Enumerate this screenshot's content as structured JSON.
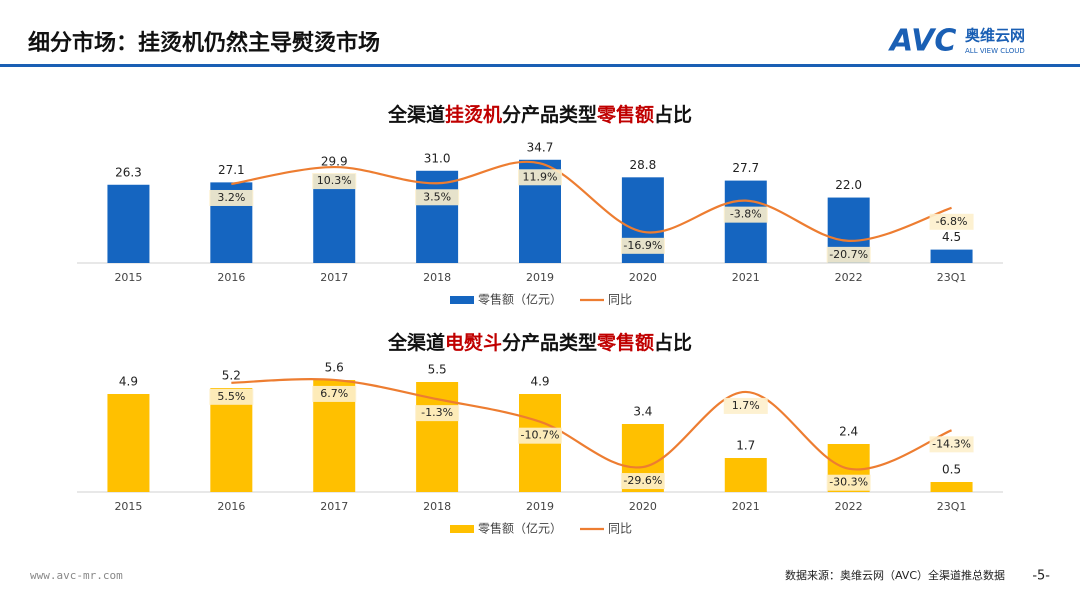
{
  "header": {
    "title": "细分市场：挂烫机仍然主导熨烫市场",
    "logo": "AVC",
    "logo_cn": "奥维云网",
    "logo_en": "ALL VIEW CLOUD"
  },
  "footer": {
    "website": "www.avc-mr.com",
    "source": "数据来源：奥维云网（AVC）全渠道推总数据",
    "page": "-5-"
  },
  "chart_data": [
    {
      "type": "bar",
      "title": [
        {
          "text": "全渠道"
        },
        {
          "text": "挂烫机",
          "color": "#c00000"
        },
        {
          "text": "分产品类型"
        },
        {
          "text": "零售额",
          "color": "#c00000"
        },
        {
          "text": "占比"
        }
      ],
      "categories": [
        "2015",
        "2016",
        "2017",
        "2018",
        "2019",
        "2020",
        "2021",
        "2022",
        "23Q1"
      ],
      "series": [
        {
          "name": "零售额（亿元）",
          "color": "#1565c0",
          "values": [
            26.3,
            27.1,
            29.9,
            31.0,
            34.7,
            28.8,
            27.7,
            22.0,
            4.5
          ],
          "value_labels": [
            "26.3",
            "27.1",
            "29.9",
            "31.0",
            "34.7",
            "28.8",
            "27.7",
            "22.0",
            "4.5"
          ]
        },
        {
          "name": "同比",
          "type": "line",
          "axis": "y2",
          "color": "#ed7d31",
          "values": [
            null,
            3.2,
            10.3,
            3.5,
            11.9,
            -16.9,
            -3.8,
            -20.7,
            -6.8
          ],
          "value_labels": [
            null,
            "3.2%",
            "10.3%",
            "3.5%",
            "11.9%",
            "-16.9%",
            "-3.8%",
            "-20.7%",
            "-6.8%"
          ]
        }
      ],
      "ylim": [
        0,
        40
      ],
      "y2lim": [
        -30,
        20
      ]
    },
    {
      "type": "bar",
      "title": [
        {
          "text": "全渠道"
        },
        {
          "text": "电熨斗",
          "color": "#c00000"
        },
        {
          "text": "分产品类型"
        },
        {
          "text": "零售额",
          "color": "#c00000"
        },
        {
          "text": "占比"
        }
      ],
      "categories": [
        "2015",
        "2016",
        "2017",
        "2018",
        "2019",
        "2020",
        "2021",
        "2022",
        "23Q1"
      ],
      "series": [
        {
          "name": "零售额（亿元）",
          "color": "#ffc000",
          "values": [
            4.9,
            5.2,
            5.6,
            5.5,
            4.9,
            3.4,
            1.7,
            2.4,
            0.5
          ]
        },
        {
          "name": "同比",
          "type": "line",
          "axis": "y2",
          "color": "#ed7d31",
          "values": [
            null,
            5.5,
            6.7,
            -1.3,
            -10.7,
            -29.6,
            1.7,
            -30.3,
            -14.3
          ],
          "value_labels": [
            null,
            "5.5%",
            "6.7%",
            "-1.3%",
            "-10.7%",
            "-29.6%",
            "1.7%",
            "-30.3%",
            "-14.3%"
          ]
        }
      ],
      "ylim": [
        0,
        6
      ],
      "y2lim": [
        -40,
        10
      ]
    }
  ]
}
